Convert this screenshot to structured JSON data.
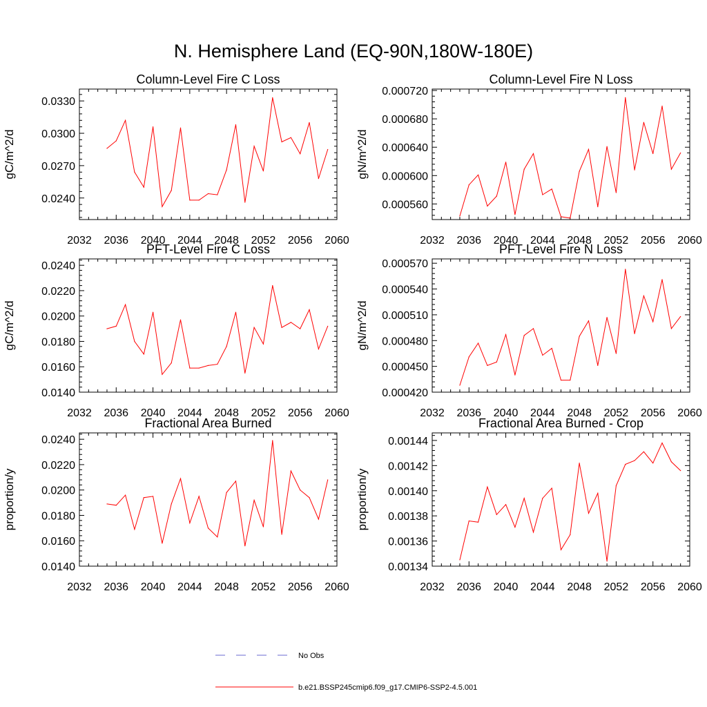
{
  "figure": {
    "title": "N. Hemisphere Land (EQ-90N,180W-180E)"
  },
  "legend": {
    "entries": [
      {
        "label": "No Obs",
        "color": "#6a6ad0",
        "dashed": true
      },
      {
        "label": "b.e21.BSSP245cmip6.f09_g17.CMIP6-SSP2-4.5.001",
        "color": "#ff0000",
        "dashed": false
      }
    ]
  },
  "colors": {
    "series": "#ff0000",
    "axis": "#000000"
  },
  "chart_data": [
    {
      "type": "line",
      "title": "Column-Level Fire C Loss",
      "ylabel": "gC/m^2/d",
      "xlabel": "",
      "xlim": [
        2032,
        2060
      ],
      "ylim": [
        0.022,
        0.0341
      ],
      "xticks": [
        2032,
        2036,
        2040,
        2044,
        2048,
        2052,
        2056,
        2060
      ],
      "xtick_labels": [
        "2032",
        "2036",
        "2040",
        "2044",
        "2048",
        "2052",
        "2056",
        "2060"
      ],
      "yticks": [
        0.024,
        0.027,
        0.03,
        0.033
      ],
      "ytick_labels": [
        "0.0240",
        "0.0270",
        "0.0300",
        "0.0330"
      ],
      "x": [
        2035,
        2036,
        2037,
        2038,
        2039,
        2040,
        2041,
        2042,
        2043,
        2044,
        2045,
        2046,
        2047,
        2048,
        2049,
        2050,
        2051,
        2052,
        2053,
        2054,
        2055,
        2056,
        2057,
        2058,
        2059
      ],
      "series": [
        {
          "values": [
            0.0286,
            0.0293,
            0.0312,
            0.0264,
            0.025,
            0.0306,
            0.0232,
            0.0247,
            0.0305,
            0.0238,
            0.0238,
            0.0244,
            0.0243,
            0.0266,
            0.0308,
            0.0236,
            0.0288,
            0.0265,
            0.0333,
            0.0292,
            0.0296,
            0.0281,
            0.031,
            0.0258,
            0.0285
          ]
        }
      ]
    },
    {
      "type": "line",
      "title": "Column-Level Fire N Loss",
      "ylabel": "gN/m^2/d",
      "xlabel": "",
      "xlim": [
        2032,
        2060
      ],
      "ylim": [
        0.000538,
        0.000722
      ],
      "xticks": [
        2032,
        2036,
        2040,
        2044,
        2048,
        2052,
        2056,
        2060
      ],
      "xtick_labels": [
        "2032",
        "2036",
        "2040",
        "2044",
        "2048",
        "2052",
        "2056",
        "2060"
      ],
      "yticks": [
        0.00056,
        0.0006,
        0.00064,
        0.00068,
        0.00072
      ],
      "ytick_labels": [
        "0.000560",
        "0.000600",
        "0.000640",
        "0.000680",
        "0.000720"
      ],
      "x": [
        2035,
        2036,
        2037,
        2038,
        2039,
        2040,
        2041,
        2042,
        2043,
        2044,
        2045,
        2046,
        2047,
        2048,
        2049,
        2050,
        2051,
        2052,
        2053,
        2054,
        2055,
        2056,
        2057,
        2058,
        2059
      ],
      "series": [
        {
          "values": [
            0.000543,
            0.000587,
            0.000601,
            0.000557,
            0.000571,
            0.000619,
            0.000545,
            0.000609,
            0.000631,
            0.000573,
            0.000581,
            0.000542,
            0.00054,
            0.000606,
            0.000637,
            0.000556,
            0.000641,
            0.000576,
            0.00071,
            0.000608,
            0.000675,
            0.000631,
            0.000698,
            0.000609,
            0.000632
          ]
        }
      ]
    },
    {
      "type": "line",
      "title": "PFT-Level Fire C Loss",
      "ylabel": "gC/m^2/d",
      "xlabel": "",
      "xlim": [
        2032,
        2060
      ],
      "ylim": [
        0.014,
        0.0245
      ],
      "xticks": [
        2032,
        2036,
        2040,
        2044,
        2048,
        2052,
        2056,
        2060
      ],
      "xtick_labels": [
        "2032",
        "2036",
        "2040",
        "2044",
        "2048",
        "2052",
        "2056",
        "2060"
      ],
      "yticks": [
        0.014,
        0.016,
        0.018,
        0.02,
        0.022,
        0.024
      ],
      "ytick_labels": [
        "0.0140",
        "0.0160",
        "0.0180",
        "0.0200",
        "0.0220",
        "0.0240"
      ],
      "x": [
        2035,
        2036,
        2037,
        2038,
        2039,
        2040,
        2041,
        2042,
        2043,
        2044,
        2045,
        2046,
        2047,
        2048,
        2049,
        2050,
        2051,
        2052,
        2053,
        2054,
        2055,
        2056,
        2057,
        2058,
        2059
      ],
      "series": [
        {
          "values": [
            0.019,
            0.0192,
            0.0209,
            0.018,
            0.017,
            0.0203,
            0.0154,
            0.0163,
            0.0197,
            0.0159,
            0.0159,
            0.0161,
            0.0162,
            0.0176,
            0.0203,
            0.0155,
            0.0191,
            0.0178,
            0.0224,
            0.0191,
            0.0195,
            0.019,
            0.0205,
            0.0174,
            0.0192
          ]
        }
      ]
    },
    {
      "type": "line",
      "title": "PFT-Level Fire N Loss",
      "ylabel": "gN/m^2/d",
      "xlabel": "",
      "xlim": [
        2032,
        2060
      ],
      "ylim": [
        0.00042,
        0.000575
      ],
      "xticks": [
        2032,
        2036,
        2040,
        2044,
        2048,
        2052,
        2056,
        2060
      ],
      "xtick_labels": [
        "2032",
        "2036",
        "2040",
        "2044",
        "2048",
        "2052",
        "2056",
        "2060"
      ],
      "yticks": [
        0.00042,
        0.00045,
        0.00048,
        0.00051,
        0.00054,
        0.00057
      ],
      "ytick_labels": [
        "0.000420",
        "0.000450",
        "0.000480",
        "0.000510",
        "0.000540",
        "0.000570"
      ],
      "x": [
        2035,
        2036,
        2037,
        2038,
        2039,
        2040,
        2041,
        2042,
        2043,
        2044,
        2045,
        2046,
        2047,
        2048,
        2049,
        2050,
        2051,
        2052,
        2053,
        2054,
        2055,
        2056,
        2057,
        2058,
        2059
      ],
      "series": [
        {
          "values": [
            0.000428,
            0.000461,
            0.000477,
            0.000451,
            0.000455,
            0.000487,
            0.00044,
            0.000486,
            0.000494,
            0.000463,
            0.000471,
            0.000434,
            0.000434,
            0.000485,
            0.000503,
            0.000451,
            0.000507,
            0.000465,
            0.000563,
            0.000488,
            0.000532,
            0.000502,
            0.000551,
            0.000494,
            0.000508
          ]
        }
      ]
    },
    {
      "type": "line",
      "title": "Fractional Area Burned",
      "ylabel": "proportion/y",
      "xlabel": "",
      "xlim": [
        2032,
        2060
      ],
      "ylim": [
        0.014,
        0.0245
      ],
      "xticks": [
        2032,
        2036,
        2040,
        2044,
        2048,
        2052,
        2056,
        2060
      ],
      "xtick_labels": [
        "2032",
        "2036",
        "2040",
        "2044",
        "2048",
        "2052",
        "2056",
        "2060"
      ],
      "yticks": [
        0.014,
        0.016,
        0.018,
        0.02,
        0.022,
        0.024
      ],
      "ytick_labels": [
        "0.0140",
        "0.0160",
        "0.0180",
        "0.0200",
        "0.0220",
        "0.0240"
      ],
      "x": [
        2035,
        2036,
        2037,
        2038,
        2039,
        2040,
        2041,
        2042,
        2043,
        2044,
        2045,
        2046,
        2047,
        2048,
        2049,
        2050,
        2051,
        2052,
        2053,
        2054,
        2055,
        2056,
        2057,
        2058,
        2059
      ],
      "series": [
        {
          "values": [
            0.0189,
            0.0188,
            0.0196,
            0.0169,
            0.0194,
            0.0195,
            0.0158,
            0.0189,
            0.0209,
            0.0174,
            0.0195,
            0.017,
            0.0163,
            0.0198,
            0.0207,
            0.0156,
            0.0192,
            0.0171,
            0.0239,
            0.0165,
            0.0215,
            0.02,
            0.0194,
            0.0177,
            0.0208
          ]
        }
      ]
    },
    {
      "type": "line",
      "title": "Fractional Area Burned - Crop",
      "ylabel": "proportion/y",
      "xlabel": "",
      "xlim": [
        2032,
        2060
      ],
      "ylim": [
        0.00134,
        0.001446
      ],
      "xticks": [
        2032,
        2036,
        2040,
        2044,
        2048,
        2052,
        2056,
        2060
      ],
      "xtick_labels": [
        "2032",
        "2036",
        "2040",
        "2044",
        "2048",
        "2052",
        "2056",
        "2060"
      ],
      "yticks": [
        0.00134,
        0.00136,
        0.00138,
        0.0014,
        0.00142,
        0.00144
      ],
      "ytick_labels": [
        "0.00134",
        "0.00136",
        "0.00138",
        "0.00140",
        "0.00142",
        "0.00144"
      ],
      "x": [
        2035,
        2036,
        2037,
        2038,
        2039,
        2040,
        2041,
        2042,
        2043,
        2044,
        2045,
        2046,
        2047,
        2048,
        2049,
        2050,
        2051,
        2052,
        2053,
        2054,
        2055,
        2056,
        2057,
        2058,
        2059
      ],
      "series": [
        {
          "values": [
            0.001345,
            0.001376,
            0.001375,
            0.001403,
            0.001381,
            0.001389,
            0.001371,
            0.001394,
            0.001367,
            0.001394,
            0.001402,
            0.001353,
            0.001365,
            0.001422,
            0.001382,
            0.001398,
            0.001344,
            0.001404,
            0.001421,
            0.001424,
            0.001431,
            0.001422,
            0.001438,
            0.001423,
            0.001416
          ]
        }
      ]
    }
  ]
}
